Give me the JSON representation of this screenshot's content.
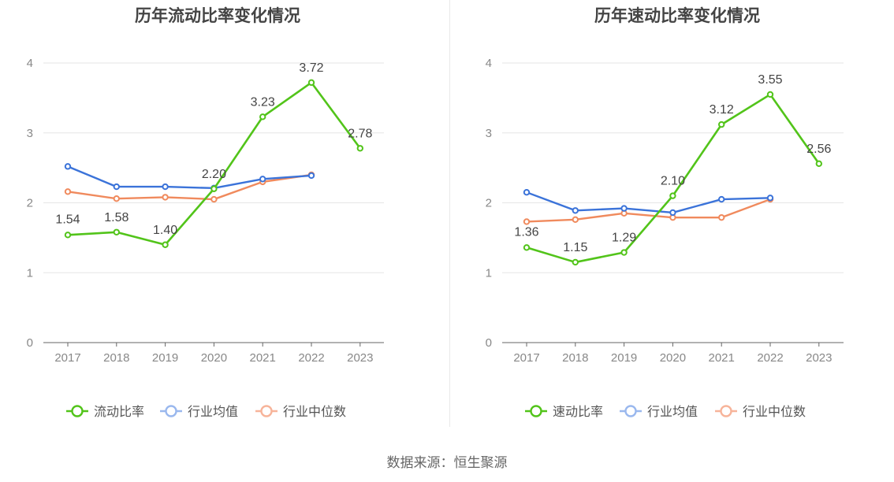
{
  "colors": {
    "company": "#52c41a",
    "industry_avg": "#3b73d9",
    "industry_median": "#f08a5d"
  },
  "source_text": "数据来源：恒生聚源",
  "chart_data": [
    {
      "type": "line",
      "title": "历年流动比率变化情况",
      "categories": [
        "2017",
        "2018",
        "2019",
        "2020",
        "2021",
        "2022",
        "2023"
      ],
      "ylim": [
        0,
        4
      ],
      "yticks": [
        "0",
        "1",
        "2",
        "3",
        "4"
      ],
      "grid": true,
      "legend_position": "bottom",
      "series": [
        {
          "name": "流动比率",
          "values": [
            1.54,
            1.58,
            1.4,
            2.2,
            3.23,
            3.72,
            2.78
          ],
          "labels": [
            "1.54",
            "1.58",
            "1.40",
            "2.20",
            "3.23",
            "3.72",
            "2.78"
          ]
        },
        {
          "name": "行业均值",
          "values": [
            2.52,
            2.23,
            2.23,
            2.21,
            2.34,
            2.39,
            null
          ]
        },
        {
          "name": "行业中位数",
          "values": [
            2.16,
            2.06,
            2.08,
            2.05,
            2.3,
            2.4,
            null
          ]
        }
      ]
    },
    {
      "type": "line",
      "title": "历年速动比率变化情况",
      "categories": [
        "2017",
        "2018",
        "2019",
        "2020",
        "2021",
        "2022",
        "2023"
      ],
      "ylim": [
        0,
        4
      ],
      "yticks": [
        "0",
        "1",
        "2",
        "3",
        "4"
      ],
      "grid": true,
      "legend_position": "bottom",
      "series": [
        {
          "name": "速动比率",
          "values": [
            1.36,
            1.15,
            1.29,
            2.1,
            3.12,
            3.55,
            2.56
          ],
          "labels": [
            "1.36",
            "1.15",
            "1.29",
            "2.10",
            "3.12",
            "3.55",
            "2.56"
          ]
        },
        {
          "name": "行业均值",
          "values": [
            2.15,
            1.89,
            1.92,
            1.86,
            2.05,
            2.07,
            null
          ]
        },
        {
          "name": "行业中位数",
          "values": [
            1.73,
            1.76,
            1.85,
            1.79,
            1.79,
            2.05,
            null
          ]
        }
      ]
    }
  ]
}
